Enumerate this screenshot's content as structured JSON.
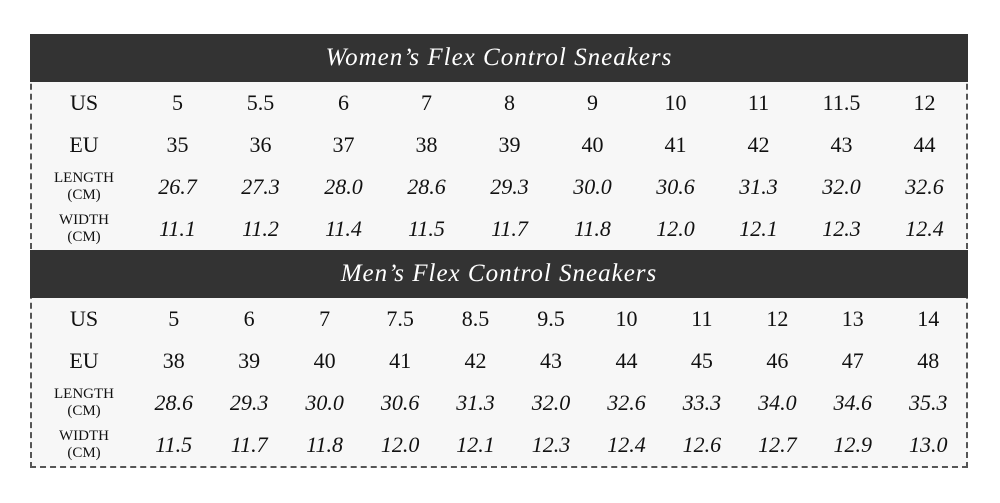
{
  "women": {
    "title": "Women’s Flex Control Sneakers",
    "rows": [
      {
        "label": [
          "US"
        ],
        "italic": false,
        "values": [
          "5",
          "5.5",
          "6",
          "7",
          "8",
          "9",
          "10",
          "11",
          "11.5",
          "12"
        ]
      },
      {
        "label": [
          "EU"
        ],
        "italic": false,
        "values": [
          "35",
          "36",
          "37",
          "38",
          "39",
          "40",
          "41",
          "42",
          "43",
          "44"
        ]
      },
      {
        "label": [
          "LENGTH",
          "(CM)"
        ],
        "italic": true,
        "values": [
          "26.7",
          "27.3",
          "28.0",
          "28.6",
          "29.3",
          "30.0",
          "30.6",
          "31.3",
          "32.0",
          "32.6"
        ]
      },
      {
        "label": [
          "WIDTH",
          "(CM)"
        ],
        "italic": true,
        "values": [
          "11.1",
          "11.2",
          "11.4",
          "11.5",
          "11.7",
          "11.8",
          "12.0",
          "12.1",
          "12.3",
          "12.4"
        ]
      }
    ]
  },
  "men": {
    "title": "Men’s Flex Control Sneakers",
    "rows": [
      {
        "label": [
          "US"
        ],
        "italic": false,
        "values": [
          "5",
          "6",
          "7",
          "7.5",
          "8.5",
          "9.5",
          "10",
          "11",
          "12",
          "13",
          "14"
        ]
      },
      {
        "label": [
          "EU"
        ],
        "italic": false,
        "values": [
          "38",
          "39",
          "40",
          "41",
          "42",
          "43",
          "44",
          "45",
          "46",
          "47",
          "48"
        ]
      },
      {
        "label": [
          "LENGTH",
          "(CM)"
        ],
        "italic": true,
        "values": [
          "28.6",
          "29.3",
          "30.0",
          "30.6",
          "31.3",
          "32.0",
          "32.6",
          "33.3",
          "34.0",
          "34.6",
          "35.3"
        ]
      },
      {
        "label": [
          "WIDTH",
          "(CM)"
        ],
        "italic": true,
        "values": [
          "11.5",
          "11.7",
          "11.8",
          "12.0",
          "12.1",
          "12.3",
          "12.4",
          "12.6",
          "12.7",
          "12.9",
          "13.0"
        ]
      }
    ]
  },
  "colors": {
    "header_bg": "#333333",
    "body_bg": "#f7f7f7",
    "border": "#555555"
  }
}
